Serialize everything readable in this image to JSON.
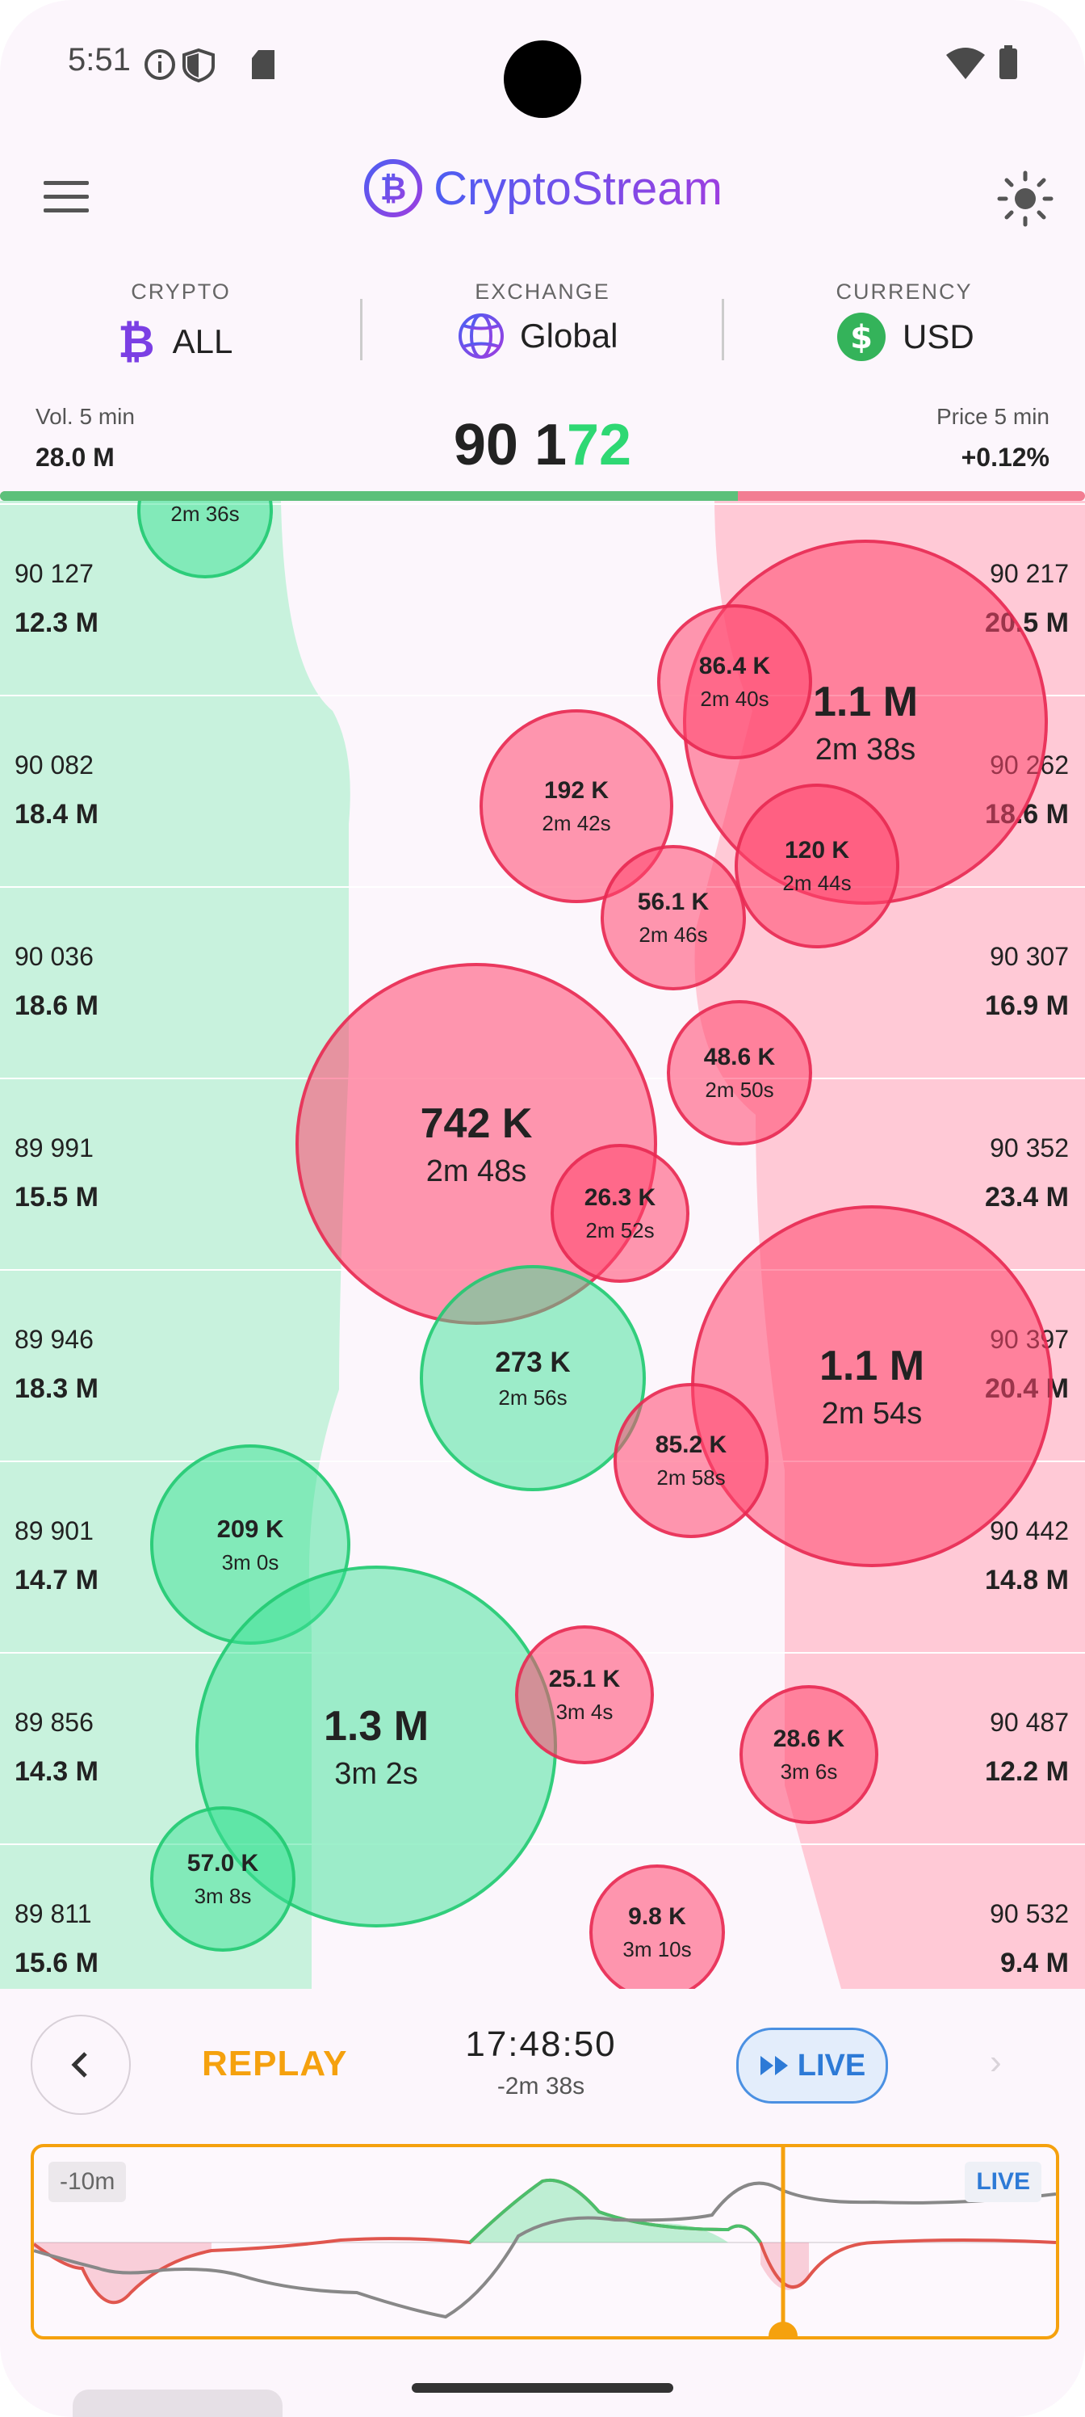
{
  "status_bar": {
    "time": "5:51"
  },
  "header": {
    "app_title": "CryptoStream"
  },
  "selectors": {
    "crypto": {
      "label": "CRYPTO",
      "value": "ALL"
    },
    "exchange": {
      "label": "EXCHANGE",
      "value": "Global"
    },
    "currency": {
      "label": "CURRENCY",
      "value": "USD"
    }
  },
  "stats": {
    "vol_label": "Vol. 5 min",
    "vol_value": "28.0 M",
    "price_main": "90 1",
    "price_highlight": "72",
    "price_change_label": "Price 5 min",
    "price_change_value": "+0.12%",
    "buy_ratio": 0.68
  },
  "order_book": {
    "bids": [
      {
        "price": "90 127",
        "volume": "12.3 M"
      },
      {
        "price": "90 082",
        "volume": "18.4 M"
      },
      {
        "price": "90 036",
        "volume": "18.6 M"
      },
      {
        "price": "89 991",
        "volume": "15.5 M"
      },
      {
        "price": "89 946",
        "volume": "18.3 M"
      },
      {
        "price": "89 901",
        "volume": "14.7 M"
      },
      {
        "price": "89 856",
        "volume": "14.3 M"
      },
      {
        "price": "89 811",
        "volume": "15.6 M"
      }
    ],
    "asks": [
      {
        "price": "90 217",
        "volume": "20.5 M"
      },
      {
        "price": "90 262",
        "volume": "18.6 M"
      },
      {
        "price": "90 307",
        "volume": "16.9 M"
      },
      {
        "price": "90 352",
        "volume": "23.4 M"
      },
      {
        "price": "90 397",
        "volume": "20.4 M"
      },
      {
        "price": "90 442",
        "volume": "14.8 M"
      },
      {
        "price": "90 487",
        "volume": "12.2 M"
      },
      {
        "price": "90 532",
        "volume": "9.4 M"
      }
    ]
  },
  "trades": [
    {
      "size": "",
      "age": "2m 36s",
      "side": "buy"
    },
    {
      "size": "1.1 M",
      "age": "2m 38s",
      "side": "sell"
    },
    {
      "size": "86.4 K",
      "age": "2m 40s",
      "side": "sell"
    },
    {
      "size": "192 K",
      "age": "2m 42s",
      "side": "sell"
    },
    {
      "size": "120 K",
      "age": "2m 44s",
      "side": "sell"
    },
    {
      "size": "56.1 K",
      "age": "2m 46s",
      "side": "sell"
    },
    {
      "size": "742 K",
      "age": "2m 48s",
      "side": "sell"
    },
    {
      "size": "48.6 K",
      "age": "2m 50s",
      "side": "sell"
    },
    {
      "size": "26.3 K",
      "age": "2m 52s",
      "side": "sell"
    },
    {
      "size": "1.1 M",
      "age": "2m 54s",
      "side": "sell"
    },
    {
      "size": "273 K",
      "age": "2m 56s",
      "side": "buy"
    },
    {
      "size": "85.2 K",
      "age": "2m 58s",
      "side": "sell"
    },
    {
      "size": "209 K",
      "age": "3m 0s",
      "side": "buy"
    },
    {
      "size": "1.3 M",
      "age": "3m 2s",
      "side": "buy"
    },
    {
      "size": "25.1 K",
      "age": "3m 4s",
      "side": "sell"
    },
    {
      "size": "28.6 K",
      "age": "3m 6s",
      "side": "sell"
    },
    {
      "size": "57.0 K",
      "age": "3m 8s",
      "side": "buy"
    },
    {
      "size": "9.8 K",
      "age": "3m 10s",
      "side": "sell"
    }
  ],
  "replay": {
    "label": "REPLAY",
    "time": "17:48:50",
    "offset": "-2m 38s",
    "live_label": "LIVE"
  },
  "timeline": {
    "range_label": "-10m",
    "live_label": "LIVE"
  },
  "colors": {
    "buy": "#2ed873",
    "sell": "#f0506e",
    "accent": "#f5a10e",
    "live": "#2d7ad6",
    "title": "#7b3fe4"
  }
}
